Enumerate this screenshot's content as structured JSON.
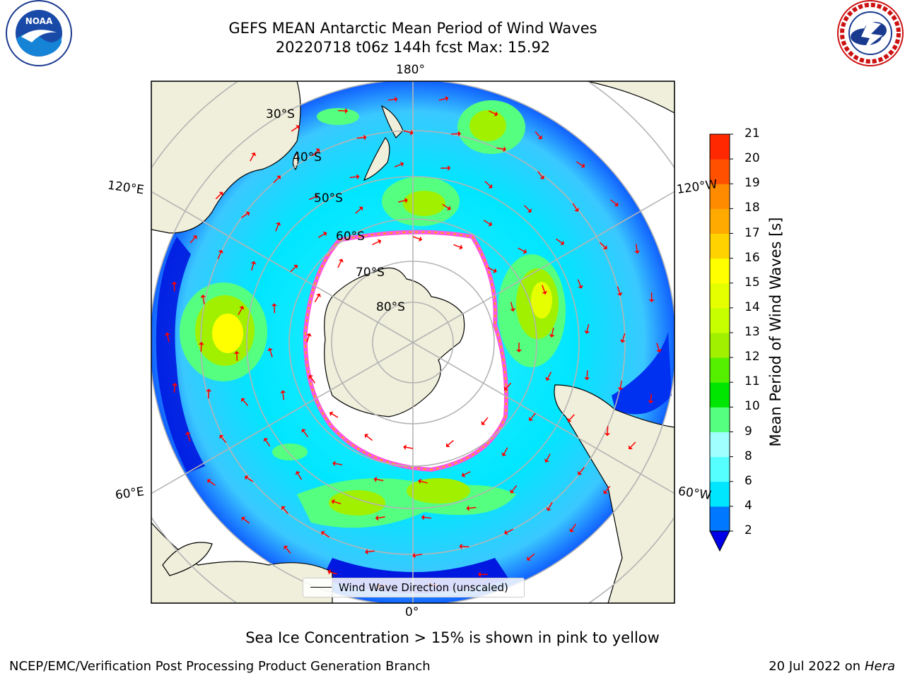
{
  "header": {
    "title_line1": "GEFS MEAN Antarctic Mean Period of Wind Waves",
    "title_line2": "20220718 t06z 144h fcst   Max: 15.92"
  },
  "logos": {
    "noaa_text": "NOAA",
    "noaa_ring_text": "NATIONAL OCEANIC AND ATMOSPHERIC ADMINISTRATION · U.S. DEPARTMENT OF COMMERCE",
    "nws_ring_text": "NATIONAL WEATHER SERVICE"
  },
  "map": {
    "longitude_labels": {
      "top": "180°",
      "bottom": "0°",
      "left_upper": "120°E",
      "left_lower": "60°E",
      "right_upper": "120°W",
      "right_lower": "60°W"
    },
    "latitude_labels": [
      "30°S",
      "40°S",
      "50°S",
      "60°S",
      "70°S",
      "80°S"
    ],
    "legend_label": "Wind Wave Direction (unscaled)",
    "colors": {
      "land": "#efefdb",
      "ice_edge_pink": "#ff55e0",
      "ice_edge_orange": "#ffaa00",
      "arrows": "#ff0000"
    }
  },
  "colorbar": {
    "label": "Mean Period of Wind Waves [s]",
    "ticks": [
      "2",
      "4",
      "6",
      "8",
      "9",
      "10",
      "11",
      "12",
      "13",
      "14",
      "15",
      "16",
      "17",
      "18",
      "19",
      "20",
      "21"
    ],
    "colors": [
      "#0000e6",
      "#0078ff",
      "#00e6ff",
      "#55ffff",
      "#a0ffff",
      "#55ff7f",
      "#00e600",
      "#55f000",
      "#a0f000",
      "#c8ff00",
      "#e6ff00",
      "#ffff00",
      "#ffd200",
      "#ffaa00",
      "#ff8c00",
      "#ff5000",
      "#ff2800",
      "#ff0000"
    ],
    "extend_color": "#0000e6"
  },
  "footer": {
    "caption": "Sea Ice Concentration > 15% is shown in pink to yellow",
    "credit_left": "NCEP/EMC/Verification Post Processing Product Generation Branch",
    "credit_date": "20 Jul 2022 on ",
    "credit_machine": "Hera"
  }
}
